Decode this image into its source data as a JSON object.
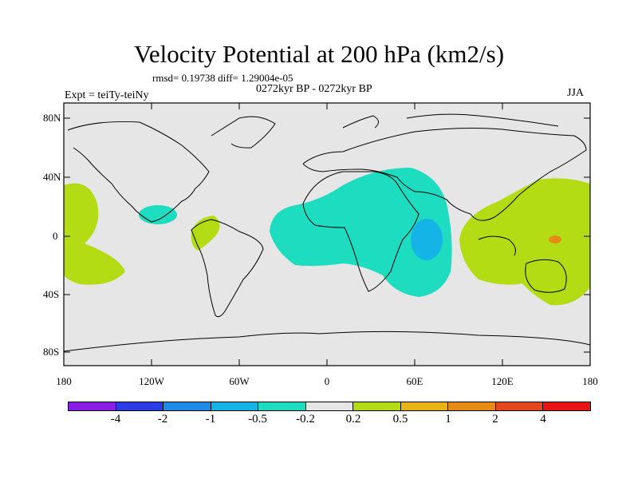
{
  "title": "Velocity Potential at 200 hPa (km2/s)",
  "stats": "rmsd= 0.19738 diff= 1.29004e-05",
  "expt": "Expt = teiTy-teiNy",
  "period": "0272kyr BP - 0272kyr BP",
  "season": "JJA",
  "y_ticks": [
    "80N",
    "40N",
    "0",
    "40S",
    "80S"
  ],
  "x_ticks": [
    "180",
    "120W",
    "60W",
    "0",
    "60E",
    "120E",
    "180"
  ],
  "colorbar": {
    "colors": [
      "#8a1ee6",
      "#2a3ce6",
      "#1e8ce6",
      "#14b4e6",
      "#1edcc0",
      "#e6e6e6",
      "#b4dc14",
      "#e6b414",
      "#e68c14",
      "#e6461e",
      "#e61414"
    ],
    "labels": [
      "-4",
      "-2",
      "-1",
      "-0.5",
      "-0.2",
      "0.2",
      "0.5",
      "1",
      "2",
      "4"
    ]
  },
  "colors": {
    "background": "#e6e6e6",
    "neg_weak": "#1edcc0",
    "neg_mid": "#14b4e6",
    "pos_weak": "#b4dc14",
    "pos_mid": "#e68c14"
  }
}
